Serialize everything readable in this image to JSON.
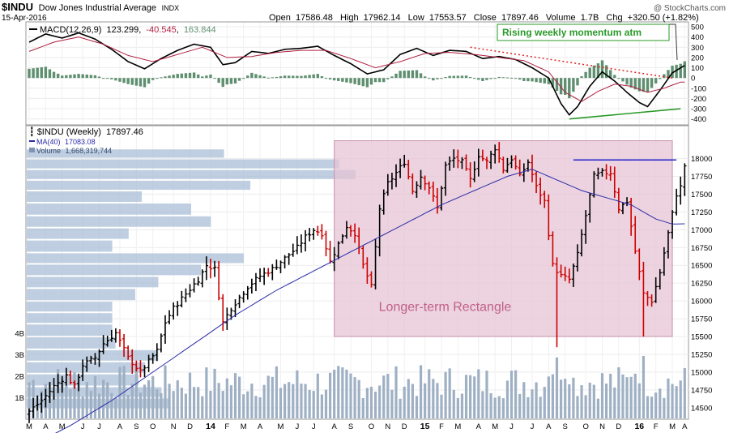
{
  "header": {
    "symbol": "$INDU",
    "name": "Dow Jones Industrial Average",
    "exchange": "INDX",
    "date": "15-Apr-2016",
    "open_label": "Open",
    "open": "17586.48",
    "high_label": "High",
    "high": "17962.14",
    "low_label": "Low",
    "low": "17553.57",
    "close_label": "Close",
    "close": "17897.46",
    "volume_label": "Volume",
    "volume": "1.7B",
    "chg_label": "Chg",
    "chg": "+320.50 (+1.82%)",
    "watermark": "@ StockCharts.com"
  },
  "colors": {
    "up": "#000000",
    "down": "#cc0000",
    "ma": "#2a2aa8",
    "macd": "#000000",
    "signal": "#b02040",
    "hist": "#5f8f70",
    "volume": "#9fb0c4",
    "volprofile": "#a6bcd6",
    "rectangle_fill": "#e6c4d4",
    "rectangle_stroke": "#c892ac",
    "annotation_green": "#2a9a2a",
    "resistance": "#2222cc",
    "downtrend": "#dd2222"
  },
  "macd_panel": {
    "legend_label": "MACD(12,26,9)",
    "macd_value": "123.299",
    "signal_value": "-40.545",
    "hist_value": "163.844",
    "annotation": "Rising weekly momentum atm",
    "ylim": [
      -450,
      540
    ],
    "ticks": [
      500,
      400,
      300,
      200,
      100,
      0,
      -100,
      -200,
      -300,
      -400
    ]
  },
  "price_panel": {
    "legend_label": "$INDU (Weekly)",
    "legend_value": "17897.46",
    "ma_label": "MA(40)",
    "ma_value": "17083.08",
    "vol_label": "Volume",
    "vol_value": "1,668,319,744",
    "rectangle_label": "Longer-term Rectangle",
    "ylim": [
      14350,
      18450
    ],
    "ticks": [
      18000,
      17750,
      17500,
      17250,
      17000,
      16750,
      16500,
      16250,
      16000,
      15750,
      15500,
      15250,
      15000,
      14750,
      14500
    ],
    "vol_ticks": [
      "4B",
      "3B",
      "2B",
      "1B"
    ],
    "rectangle": {
      "x_start": 74,
      "x_end": 156,
      "top": 18250,
      "bottom": 15500
    },
    "resistance": {
      "x_start": 132,
      "x_end": 157,
      "level": 17980
    }
  },
  "x_axis": {
    "labels": [
      {
        "i": 0,
        "text": "M"
      },
      {
        "i": 4,
        "text": "A"
      },
      {
        "i": 8,
        "text": "M"
      },
      {
        "i": 13,
        "text": "J"
      },
      {
        "i": 17,
        "text": "J"
      },
      {
        "i": 22,
        "text": "A"
      },
      {
        "i": 26,
        "text": "S"
      },
      {
        "i": 30,
        "text": "O"
      },
      {
        "i": 35,
        "text": "N"
      },
      {
        "i": 39,
        "text": "D"
      },
      {
        "i": 44,
        "text": "14"
      },
      {
        "i": 48,
        "text": "F"
      },
      {
        "i": 52,
        "text": "M"
      },
      {
        "i": 56,
        "text": "A"
      },
      {
        "i": 61,
        "text": "M"
      },
      {
        "i": 65,
        "text": "J"
      },
      {
        "i": 69,
        "text": "J"
      },
      {
        "i": 74,
        "text": "A"
      },
      {
        "i": 78,
        "text": "S"
      },
      {
        "i": 83,
        "text": "O"
      },
      {
        "i": 87,
        "text": "N"
      },
      {
        "i": 91,
        "text": "D"
      },
      {
        "i": 96,
        "text": "15"
      },
      {
        "i": 100,
        "text": "F"
      },
      {
        "i": 104,
        "text": "M"
      },
      {
        "i": 109,
        "text": "A"
      },
      {
        "i": 113,
        "text": "M"
      },
      {
        "i": 117,
        "text": "J"
      },
      {
        "i": 122,
        "text": "J"
      },
      {
        "i": 126,
        "text": "A"
      },
      {
        "i": 130,
        "text": "S"
      },
      {
        "i": 135,
        "text": "O"
      },
      {
        "i": 139,
        "text": "N"
      },
      {
        "i": 143,
        "text": "D"
      },
      {
        "i": 148,
        "text": "16"
      },
      {
        "i": 152,
        "text": "F"
      },
      {
        "i": 156,
        "text": "M"
      },
      {
        "i": 159,
        "text": "A"
      }
    ]
  },
  "chart_data": {
    "type": "line",
    "title": "$INDU Dow Jones Industrial Average INDX",
    "x_unit": "week index (weekly bars, Mar 2013 - Apr 2016)",
    "close_anchors": [
      [
        0,
        14450
      ],
      [
        3,
        14600
      ],
      [
        6,
        14800
      ],
      [
        9,
        14950
      ],
      [
        11,
        14800
      ],
      [
        13,
        15100
      ],
      [
        16,
        15200
      ],
      [
        18,
        15400
      ],
      [
        21,
        15550
      ],
      [
        24,
        15200
      ],
      [
        27,
        15000
      ],
      [
        29,
        15150
      ],
      [
        31,
        15300
      ],
      [
        33,
        15700
      ],
      [
        35,
        15900
      ],
      [
        38,
        16100
      ],
      [
        41,
        16300
      ],
      [
        43,
        16500
      ],
      [
        45,
        16450
      ],
      [
        47,
        15700
      ],
      [
        49,
        15900
      ],
      [
        51,
        16050
      ],
      [
        53,
        16200
      ],
      [
        56,
        16350
      ],
      [
        59,
        16450
      ],
      [
        62,
        16600
      ],
      [
        65,
        16750
      ],
      [
        67,
        16900
      ],
      [
        69,
        17000
      ],
      [
        71,
        16950
      ],
      [
        73,
        16550
      ],
      [
        75,
        16800
      ],
      [
        77,
        17050
      ],
      [
        79,
        16950
      ],
      [
        81,
        16500
      ],
      [
        83,
        16200
      ],
      [
        85,
        17300
      ],
      [
        87,
        17650
      ],
      [
        89,
        17800
      ],
      [
        91,
        17950
      ],
      [
        93,
        17550
      ],
      [
        95,
        17750
      ],
      [
        97,
        17600
      ],
      [
        99,
        17300
      ],
      [
        101,
        17900
      ],
      [
        103,
        18000
      ],
      [
        105,
        17950
      ],
      [
        107,
        17700
      ],
      [
        109,
        18050
      ],
      [
        111,
        17950
      ],
      [
        113,
        18150
      ],
      [
        115,
        17850
      ],
      [
        117,
        18000
      ],
      [
        119,
        17750
      ],
      [
        121,
        17950
      ],
      [
        123,
        17600
      ],
      [
        125,
        17400
      ],
      [
        127,
        16500
      ],
      [
        129,
        16350
      ],
      [
        131,
        16300
      ],
      [
        133,
        16650
      ],
      [
        135,
        17200
      ],
      [
        137,
        17750
      ],
      [
        139,
        17800
      ],
      [
        141,
        17800
      ],
      [
        143,
        17300
      ],
      [
        145,
        17400
      ],
      [
        147,
        16700
      ],
      [
        149,
        16100
      ],
      [
        151,
        16000
      ],
      [
        153,
        16400
      ],
      [
        155,
        16950
      ],
      [
        157,
        17500
      ],
      [
        158,
        17600
      ],
      [
        159,
        17897
      ]
    ],
    "ma40_anchors": [
      [
        0,
        13950
      ],
      [
        10,
        14250
      ],
      [
        20,
        14600
      ],
      [
        30,
        15000
      ],
      [
        40,
        15400
      ],
      [
        50,
        15800
      ],
      [
        60,
        16150
      ],
      [
        70,
        16450
      ],
      [
        80,
        16750
      ],
      [
        90,
        17050
      ],
      [
        100,
        17350
      ],
      [
        110,
        17600
      ],
      [
        116,
        17750
      ],
      [
        122,
        17850
      ],
      [
        128,
        17700
      ],
      [
        134,
        17550
      ],
      [
        140,
        17450
      ],
      [
        146,
        17350
      ],
      [
        152,
        17150
      ],
      [
        156,
        17080
      ],
      [
        159,
        17083
      ]
    ],
    "macd_anchors": [
      [
        0,
        350
      ],
      [
        4,
        430
      ],
      [
        8,
        390
      ],
      [
        12,
        440
      ],
      [
        16,
        380
      ],
      [
        20,
        280
      ],
      [
        24,
        160
      ],
      [
        28,
        90
      ],
      [
        32,
        190
      ],
      [
        36,
        270
      ],
      [
        40,
        330
      ],
      [
        44,
        300
      ],
      [
        47,
        130
      ],
      [
        50,
        150
      ],
      [
        54,
        260
      ],
      [
        58,
        240
      ],
      [
        62,
        280
      ],
      [
        66,
        290
      ],
      [
        70,
        310
      ],
      [
        74,
        220
      ],
      [
        78,
        140
      ],
      [
        82,
        40
      ],
      [
        86,
        80
      ],
      [
        90,
        230
      ],
      [
        94,
        290
      ],
      [
        98,
        220
      ],
      [
        102,
        270
      ],
      [
        106,
        260
      ],
      [
        110,
        190
      ],
      [
        114,
        210
      ],
      [
        118,
        180
      ],
      [
        122,
        100
      ],
      [
        126,
        0
      ],
      [
        129,
        -250
      ],
      [
        131,
        -360
      ],
      [
        133,
        -280
      ],
      [
        136,
        -80
      ],
      [
        139,
        60
      ],
      [
        142,
        -30
      ],
      [
        145,
        -140
      ],
      [
        148,
        -240
      ],
      [
        150,
        -280
      ],
      [
        153,
        -120
      ],
      [
        156,
        50
      ],
      [
        159,
        123
      ]
    ],
    "signal_anchors": [
      [
        0,
        260
      ],
      [
        6,
        350
      ],
      [
        12,
        400
      ],
      [
        18,
        330
      ],
      [
        24,
        220
      ],
      [
        30,
        160
      ],
      [
        36,
        230
      ],
      [
        42,
        300
      ],
      [
        48,
        200
      ],
      [
        54,
        210
      ],
      [
        60,
        250
      ],
      [
        66,
        270
      ],
      [
        72,
        270
      ],
      [
        78,
        190
      ],
      [
        84,
        100
      ],
      [
        90,
        160
      ],
      [
        96,
        240
      ],
      [
        102,
        250
      ],
      [
        108,
        230
      ],
      [
        114,
        200
      ],
      [
        120,
        170
      ],
      [
        126,
        60
      ],
      [
        130,
        -140
      ],
      [
        134,
        -230
      ],
      [
        138,
        -130
      ],
      [
        142,
        -60
      ],
      [
        146,
        -80
      ],
      [
        150,
        -140
      ],
      [
        154,
        -100
      ],
      [
        158,
        -40
      ],
      [
        159,
        -40
      ]
    ],
    "macd_downtrend_line": {
      "x_start": 107,
      "y_start": 300,
      "x_end": 156,
      "y_end": 0
    },
    "macd_uptrend_line": {
      "x_start": 131,
      "y_start": -400,
      "x_end": 158,
      "y_end": -300
    },
    "volume_profile_rows": [
      {
        "price_low": 18000,
        "price_high": 18140,
        "relative": 0.6
      },
      {
        "price_low": 17850,
        "price_high": 18000,
        "relative": 0.95
      },
      {
        "price_low": 17700,
        "price_high": 17850,
        "relative": 1.0
      },
      {
        "price_low": 17550,
        "price_high": 17700,
        "relative": 0.68
      },
      {
        "price_low": 17380,
        "price_high": 17550,
        "relative": 0.35
      },
      {
        "price_low": 17200,
        "price_high": 17380,
        "relative": 0.5
      },
      {
        "price_low": 17030,
        "price_high": 17200,
        "relative": 0.56
      },
      {
        "price_low": 16860,
        "price_high": 17030,
        "relative": 0.31
      },
      {
        "price_low": 16680,
        "price_high": 16860,
        "relative": 0.26
      },
      {
        "price_low": 16520,
        "price_high": 16680,
        "relative": 0.66
      },
      {
        "price_low": 16350,
        "price_high": 16520,
        "relative": 0.53
      },
      {
        "price_low": 16180,
        "price_high": 16350,
        "relative": 0.4
      },
      {
        "price_low": 16000,
        "price_high": 16180,
        "relative": 0.33
      },
      {
        "price_low": 15840,
        "price_high": 16000,
        "relative": 0.26
      },
      {
        "price_low": 15680,
        "price_high": 15840,
        "relative": 0.26
      },
      {
        "price_low": 15500,
        "price_high": 15680,
        "relative": 0.26
      },
      {
        "price_low": 15320,
        "price_high": 15500,
        "relative": 0.27
      },
      {
        "price_low": 15150,
        "price_high": 15320,
        "relative": 0.4
      },
      {
        "price_low": 14980,
        "price_high": 15150,
        "relative": 0.36
      },
      {
        "price_low": 14800,
        "price_high": 14980,
        "relative": 0.34
      },
      {
        "price_low": 14640,
        "price_high": 14800,
        "relative": 0.41
      },
      {
        "price_low": 14480,
        "price_high": 14640,
        "relative": 0.43
      }
    ],
    "grid": true,
    "legend_placement": "top-left"
  }
}
